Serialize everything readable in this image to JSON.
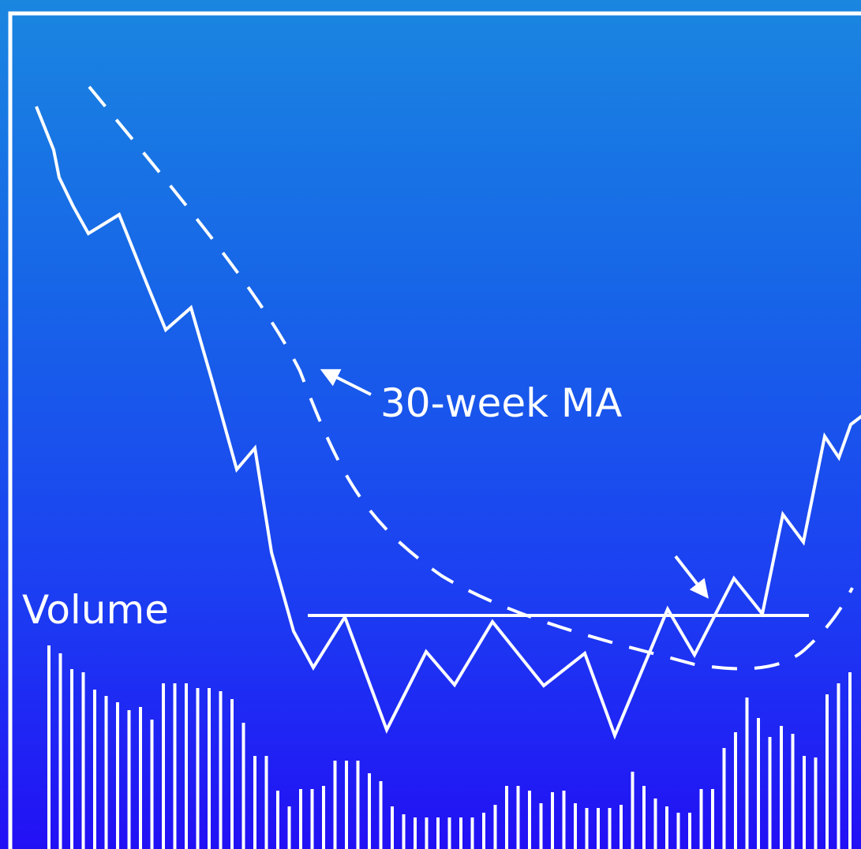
{
  "colors": {
    "line": "#ffffff",
    "background_top": "#1a86e0",
    "background_bottom": "#2210f5"
  },
  "labels": {
    "ma": "30-week MA",
    "volume": "Volume"
  },
  "chart_data": {
    "type": "line",
    "series": [
      {
        "name": "30-week MA",
        "style": "dashed"
      }
    ],
    "annotations": [
      "30-week MA",
      "Volume"
    ]
  }
}
